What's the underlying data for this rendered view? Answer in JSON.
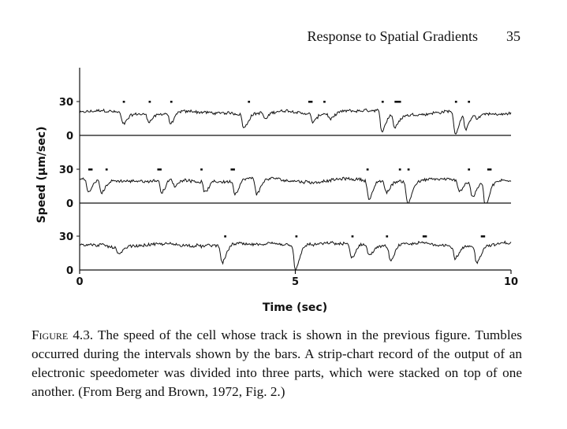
{
  "header": {
    "running_title": "Response to Spatial Gradients",
    "page_number": "35"
  },
  "caption": {
    "figure_label": "Figure 4.3.",
    "text": "The speed of the cell whose track is shown in the previous figure. Tumbles occurred during the intervals shown by the bars. A strip-chart record of the output of an electronic speedometer was divided into three parts, which were stacked on top of one another. (From Berg and Brown, 1972, Fig. 2.)"
  },
  "chart_data": {
    "type": "line",
    "xlabel": "Time (sec)",
    "ylabel": "Speed (μm/sec)",
    "xlim": [
      0,
      10
    ],
    "x_ticks": [
      "0",
      "5",
      "10"
    ],
    "y_ticks": [
      "0",
      "30"
    ],
    "ylim": [
      0,
      30
    ],
    "grid": false,
    "legend": "none",
    "panels": [
      {
        "name": "",
        "baseline": 20,
        "dips": [
          {
            "t": 1.0,
            "depth": 10
          },
          {
            "t": 1.6,
            "depth": 6
          },
          {
            "t": 2.1,
            "depth": 10
          },
          {
            "t": 3.8,
            "depth": 12
          },
          {
            "t": 4.3,
            "depth": 6
          },
          {
            "t": 5.4,
            "depth": 7
          },
          {
            "t": 5.8,
            "depth": 5
          },
          {
            "t": 7.0,
            "depth": 18
          },
          {
            "t": 7.3,
            "depth": 12
          },
          {
            "t": 8.7,
            "depth": 19
          },
          {
            "t": 8.95,
            "depth": 14
          },
          {
            "t": 9.2,
            "depth": 6
          }
        ],
        "tumble_bars": [
          {
            "start": 1.0,
            "end": 1.05
          },
          {
            "start": 1.6,
            "end": 1.65
          },
          {
            "start": 2.1,
            "end": 2.15
          },
          {
            "start": 3.9,
            "end": 3.95
          },
          {
            "start": 5.3,
            "end": 5.4
          },
          {
            "start": 5.65,
            "end": 5.7
          },
          {
            "start": 7.0,
            "end": 7.05
          },
          {
            "start": 7.3,
            "end": 7.45
          },
          {
            "start": 8.7,
            "end": 8.75
          },
          {
            "start": 9.0,
            "end": 9.05
          }
        ]
      },
      {
        "name": "",
        "baseline": 20,
        "dips": [
          {
            "t": 0.2,
            "depth": 12
          },
          {
            "t": 0.5,
            "depth": 10
          },
          {
            "t": 1.9,
            "depth": 11
          },
          {
            "t": 2.2,
            "depth": 7
          },
          {
            "t": 2.9,
            "depth": 9
          },
          {
            "t": 3.6,
            "depth": 12
          },
          {
            "t": 4.1,
            "depth": 15
          },
          {
            "t": 6.7,
            "depth": 16
          },
          {
            "t": 7.1,
            "depth": 10
          },
          {
            "t": 7.6,
            "depth": 20
          },
          {
            "t": 8.8,
            "depth": 9
          },
          {
            "t": 9.1,
            "depth": 14
          },
          {
            "t": 9.4,
            "depth": 20
          }
        ],
        "tumble_bars": [
          {
            "start": 0.2,
            "end": 0.3
          },
          {
            "start": 0.6,
            "end": 0.65
          },
          {
            "start": 1.8,
            "end": 1.9
          },
          {
            "start": 2.8,
            "end": 2.85
          },
          {
            "start": 3.5,
            "end": 3.6
          },
          {
            "start": 6.65,
            "end": 6.7
          },
          {
            "start": 7.4,
            "end": 7.45
          },
          {
            "start": 7.6,
            "end": 7.65
          },
          {
            "start": 9.0,
            "end": 9.05
          },
          {
            "start": 9.45,
            "end": 9.55
          }
        ]
      },
      {
        "name": "",
        "baseline": 22,
        "dips": [
          {
            "t": 0.9,
            "depth": 6
          },
          {
            "t": 3.3,
            "depth": 16
          },
          {
            "t": 5.0,
            "depth": 22
          },
          {
            "t": 6.3,
            "depth": 12
          },
          {
            "t": 6.7,
            "depth": 8
          },
          {
            "t": 7.2,
            "depth": 14
          },
          {
            "t": 8.7,
            "depth": 10
          },
          {
            "t": 9.2,
            "depth": 14
          }
        ],
        "tumble_bars": [
          {
            "start": 3.35,
            "end": 3.4
          },
          {
            "start": 5.0,
            "end": 5.05
          },
          {
            "start": 6.3,
            "end": 6.35
          },
          {
            "start": 7.1,
            "end": 7.15
          },
          {
            "start": 7.95,
            "end": 8.05
          },
          {
            "start": 9.3,
            "end": 9.4
          }
        ]
      }
    ]
  }
}
